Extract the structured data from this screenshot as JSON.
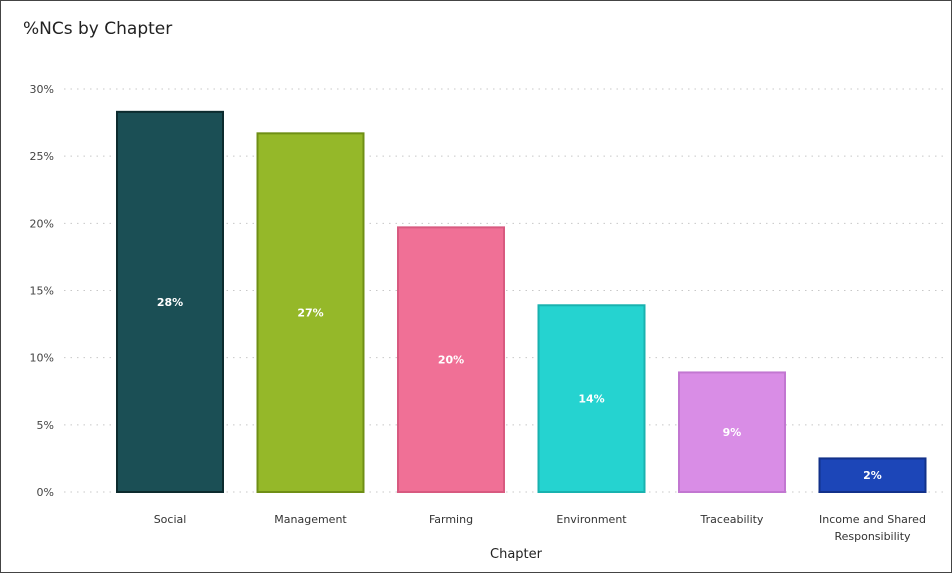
{
  "chart_data": {
    "type": "bar",
    "title": "%NCs by Chapter",
    "xlabel": "Chapter",
    "ylabel": "",
    "ylim": [
      0,
      30
    ],
    "yticks": [
      "0%",
      "5%",
      "10%",
      "15%",
      "20%",
      "25%",
      "30%"
    ],
    "grid": true,
    "categories": [
      [
        "Social"
      ],
      [
        "Management"
      ],
      [
        "Farming"
      ],
      [
        "Environment"
      ],
      [
        "Traceability"
      ],
      [
        "Income and Shared",
        "Responsibility"
      ]
    ],
    "values": [
      28.3,
      26.7,
      19.7,
      13.9,
      8.9,
      2.5
    ],
    "labels": [
      "28%",
      "27%",
      "20%",
      "14%",
      "9%",
      "2%"
    ],
    "colors": [
      "#1b4f55",
      "#95b829",
      "#f07096",
      "#25d3d0",
      "#d98de6",
      "#1c46b8"
    ],
    "borders": [
      "#0c2b2e",
      "#6f8f15",
      "#d85a80",
      "#19b2af",
      "#c277d1",
      "#12318a"
    ]
  }
}
